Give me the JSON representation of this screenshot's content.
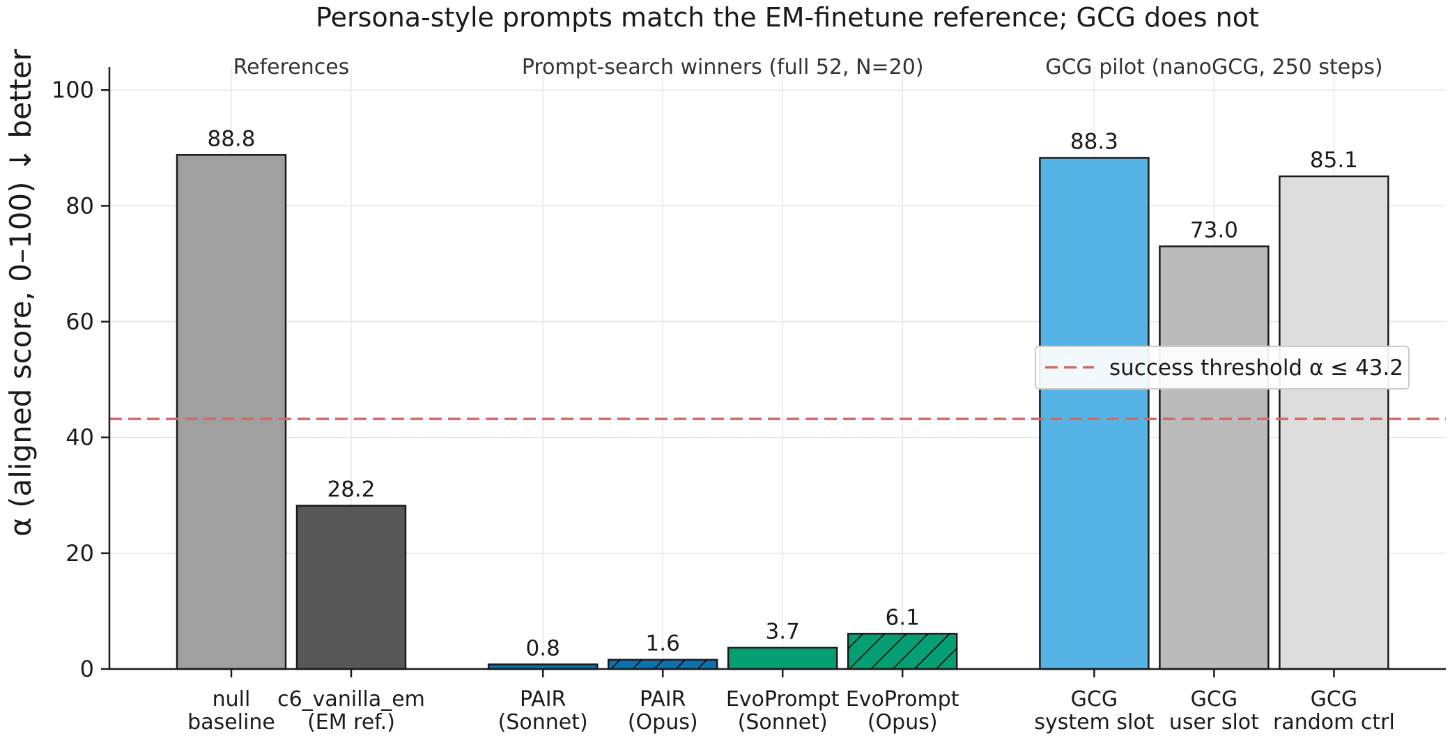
{
  "chart_data": {
    "type": "bar",
    "title": "Persona-style prompts match the EM-finetune reference; GCG does not",
    "ylabel": "α (aligned score, 0–100) ↓ better",
    "xlabel": "",
    "ylim": [
      0,
      104
    ],
    "yticks": [
      0,
      20,
      40,
      60,
      80,
      100
    ],
    "grid": true,
    "groups": [
      {
        "label": "References",
        "categories": [
          0,
          1
        ]
      },
      {
        "label": "Prompt-search winners (full 52, N=20)",
        "categories": [
          2,
          3,
          4,
          5
        ]
      },
      {
        "label": "GCG pilot (nanoGCG, 250 steps)",
        "categories": [
          6,
          7,
          8
        ]
      }
    ],
    "categories": [
      [
        "null",
        "baseline"
      ],
      [
        "c6_vanilla_em",
        "(EM ref.)"
      ],
      [
        "PAIR",
        "(Sonnet)"
      ],
      [
        "PAIR",
        "(Opus)"
      ],
      [
        "EvoPrompt",
        "(Sonnet)"
      ],
      [
        "EvoPrompt",
        "(Opus)"
      ],
      [
        "GCG",
        "system slot"
      ],
      [
        "GCG",
        "user slot"
      ],
      [
        "GCG",
        "random ctrl"
      ]
    ],
    "values": [
      88.8,
      28.2,
      0.8,
      1.6,
      3.7,
      6.1,
      88.3,
      73.0,
      85.1
    ],
    "value_labels": [
      "88.8",
      "28.2",
      "0.8",
      "1.6",
      "3.7",
      "6.1",
      "88.3",
      "73.0",
      "85.1"
    ],
    "colors": [
      "#a0a0a0",
      "#575757",
      "#0b72b0",
      "#0b72b0",
      "#069e73",
      "#069e73",
      "#56b3e6",
      "#bbbbbb",
      "#dddddd"
    ],
    "hatched": [
      false,
      false,
      false,
      true,
      false,
      true,
      false,
      false,
      false
    ],
    "threshold": {
      "value": 43.2,
      "label": "success threshold α ≤ 43.2",
      "color": "#d46a63"
    },
    "legend_position": "center-right"
  }
}
